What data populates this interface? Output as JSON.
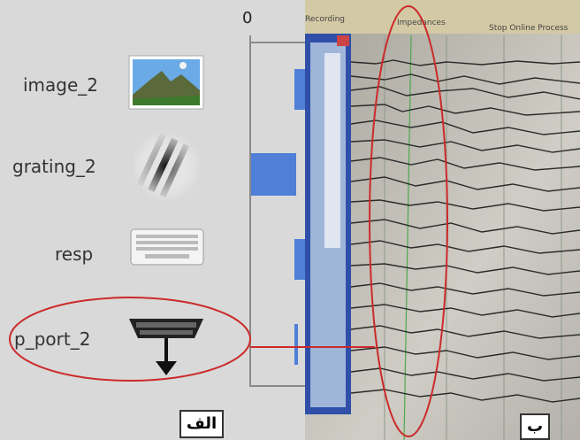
{
  "left_panel": {
    "timeline_zero": "0",
    "components": [
      {
        "label": "image_2",
        "icon": "landscape-image-icon"
      },
      {
        "label": "grating_2",
        "icon": "grating-icon"
      },
      {
        "label": "resp",
        "icon": "keyboard-icon"
      },
      {
        "label": "p_port_2",
        "icon": "parallel-port-icon"
      }
    ],
    "panel_label": "الف"
  },
  "right_panel": {
    "tabs_text": [
      "Recording",
      "Impedances",
      "Stop Online Process"
    ],
    "panel_label": "ب"
  },
  "colors": {
    "bar": "#4f7fd6",
    "highlight_red": "#cc2a2a",
    "left_bg": "#d9d9d9"
  }
}
